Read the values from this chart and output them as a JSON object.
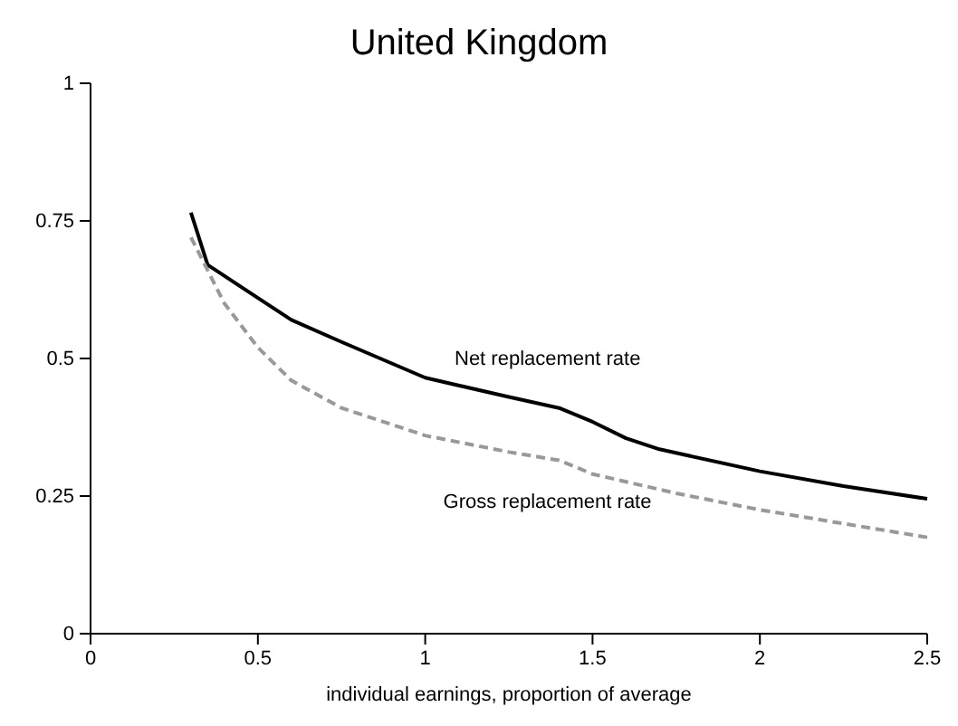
{
  "chart_data": {
    "type": "line",
    "title": "United Kingdom",
    "xlabel": "individual earnings, proportion of average",
    "xlim": [
      0,
      2.5
    ],
    "xticks": [
      0,
      0.5,
      1,
      1.5,
      2,
      2.5
    ],
    "ylim": [
      0,
      1
    ],
    "yticks": [
      0,
      0.25,
      0.5,
      0.75,
      1
    ],
    "grid": false,
    "legend": false,
    "series": [
      {
        "name": "Net replacement rate",
        "color": "#000000",
        "line_style": "solid",
        "x": [
          0.3,
          0.35,
          0.5,
          0.6,
          0.75,
          1,
          1.25,
          1.4,
          1.5,
          1.6,
          1.7,
          2,
          2.25,
          2.5
        ],
        "values": [
          0.765,
          0.67,
          0.61,
          0.57,
          0.53,
          0.465,
          0.43,
          0.41,
          0.385,
          0.355,
          0.335,
          0.295,
          0.268,
          0.245
        ]
      },
      {
        "name": "Gross replacement rate",
        "color": "#999999",
        "line_style": "dashed",
        "x": [
          0.3,
          0.4,
          0.5,
          0.6,
          0.75,
          1,
          1.25,
          1.4,
          1.5,
          1.75,
          2,
          2.25,
          2.5
        ],
        "values": [
          0.72,
          0.6,
          0.52,
          0.46,
          0.41,
          0.36,
          0.33,
          0.315,
          0.29,
          0.255,
          0.225,
          0.2,
          0.175
        ]
      }
    ]
  }
}
